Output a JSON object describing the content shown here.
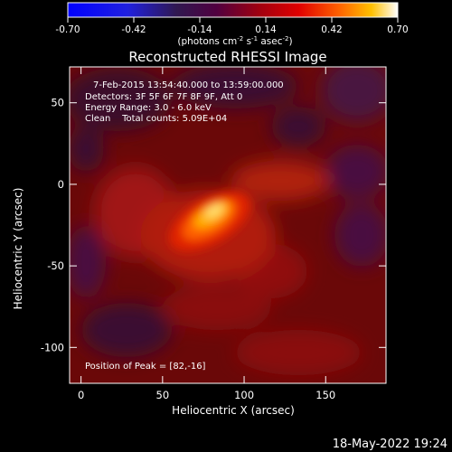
{
  "chart_data": {
    "type": "heatmap",
    "title": "Reconstructed RHESSI Image",
    "info_lines": [
      "7-Feb-2015 13:54:40.000 to 13:59:00.000",
      "Detectors: 3F 5F 6F 7F 8F 9F, Att 0",
      "Energy Range: 3.0 - 6.0 keV",
      "Clean    Total counts: 5.09E+04"
    ],
    "peak_label": "Position of Peak = [82,-16]",
    "peak": [
      82,
      -16
    ],
    "xlabel": "Heliocentric X (arcsec)",
    "ylabel": "Heliocentric Y (arcsec)",
    "xlim": [
      -7,
      187
    ],
    "ylim": [
      -122,
      72
    ],
    "x_ticks": [
      "0",
      "50",
      "100",
      "150"
    ],
    "x_tick_values": [
      0,
      50,
      100,
      150
    ],
    "y_ticks": [
      "50",
      "0",
      "-50",
      "-100"
    ],
    "y_tick_values": [
      50,
      0,
      -50,
      -100
    ],
    "colorbar": {
      "min": -0.7,
      "max": 0.7,
      "tick_labels": [
        "-0.70",
        "-0.42",
        "-0.14",
        "0.14",
        "0.42",
        "0.70"
      ],
      "unit_text": "(photons cm",
      "unit_sup1": "-2",
      "unit_mid": " s",
      "unit_sup2": "-1",
      "unit_end": " asec",
      "unit_sup3": "-2",
      "unit_close": ")"
    },
    "colors": {
      "low": "#0000ff",
      "mid": "#400040",
      "hot": "#ff0000",
      "max": "#ffffff"
    }
  },
  "timestamp": "18-May-2022 19:24"
}
